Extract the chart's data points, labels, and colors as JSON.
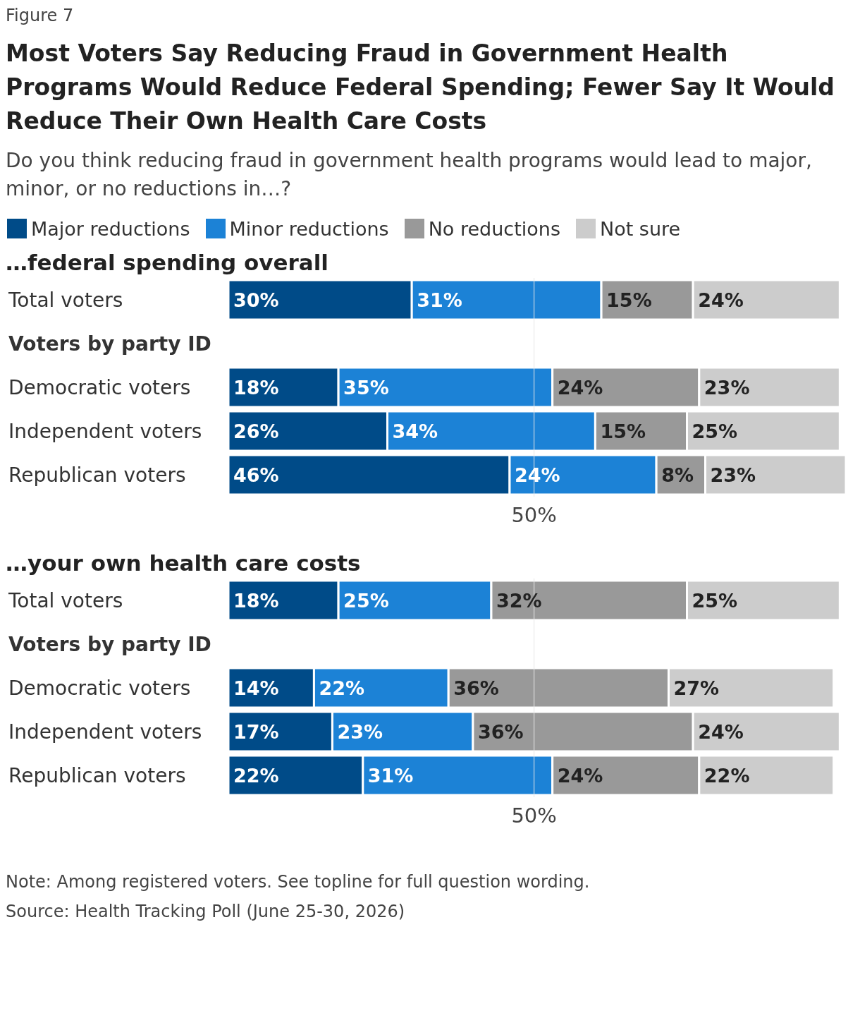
{
  "chart_data": [
    {
      "type": "bar",
      "orientation": "horizontal",
      "stacked": true,
      "title": "Most Voters Say Reducing Fraud in Government Health Programs Would Reduce Federal Spending; Fewer Say It Would Reduce Their Own Health Care Costs",
      "subtitle": "Do you think reducing fraud in government health programs would lead to major, minor, or no reductions in…?",
      "annotations": [
        "Figure 7",
        "…federal spending overall"
      ],
      "categories": [
        "Total voters",
        "Voters by party ID",
        "Democratic voters",
        "Independent voters",
        "Republican voters"
      ],
      "xlim": [
        0,
        101
      ],
      "tick_labels": "y",
      "legend": "top left",
      "ref_lines": [
        {
          "axis": "x",
          "value": 50,
          "label": "50%",
          "color": "#e6e6e6"
        }
      ],
      "series": [
        {
          "name": "Major reductions",
          "color": "#004b88",
          "values": [
            30,
            null,
            18,
            26,
            46
          ],
          "value_labels": [
            "30%",
            null,
            "18%",
            "26%",
            "46%"
          ]
        },
        {
          "name": "Minor reductions",
          "color": "#1c82d6",
          "values": [
            31,
            null,
            35,
            34,
            24
          ],
          "value_labels": [
            "31%",
            null,
            "35%",
            "34%",
            "24%"
          ]
        },
        {
          "name": "No reductions",
          "color": "#999999",
          "values": [
            15,
            null,
            24,
            15,
            8
          ],
          "value_labels": [
            "15%",
            null,
            "24%",
            "15%",
            "8%"
          ]
        },
        {
          "name": "Not sure",
          "color": "#cccccc",
          "values": [
            24,
            null,
            23,
            25,
            23
          ],
          "value_labels": [
            "24%",
            null,
            "23%",
            "25%",
            "23%"
          ]
        }
      ]
    },
    {
      "type": "bar",
      "orientation": "horizontal",
      "stacked": true,
      "title": "…your own health care costs",
      "annotations": [
        "Note: Among registered voters. See topline for full question wording.",
        "Source: Health Tracking Poll (June 25-30, 2026)"
      ],
      "categories": [
        "Total voters",
        "Voters by party ID",
        "Democratic voters",
        "Independent voters",
        "Republican voters"
      ],
      "xlim": [
        0,
        101
      ],
      "tick_labels": "y",
      "ref_lines": [
        {
          "axis": "x",
          "value": 50,
          "label": "50%",
          "color": "#e6e6e6"
        }
      ],
      "series": [
        {
          "color": "#004b88",
          "values": [
            18,
            null,
            14,
            17,
            22
          ],
          "value_labels": [
            "18%",
            null,
            "14%",
            "17%",
            "22%"
          ]
        },
        {
          "color": "#1c82d6",
          "values": [
            25,
            null,
            22,
            23,
            31
          ],
          "value_labels": [
            "25%",
            null,
            "22%",
            "23%",
            "31%"
          ]
        },
        {
          "color": "#999999",
          "values": [
            32,
            null,
            36,
            36,
            24
          ],
          "value_labels": [
            "32%",
            null,
            "36%",
            "36%",
            "24%"
          ]
        },
        {
          "color": "#cccccc",
          "values": [
            25,
            null,
            27,
            24,
            22
          ],
          "value_labels": [
            "25%",
            null,
            "27%",
            "24%",
            "22%"
          ]
        }
      ]
    }
  ]
}
